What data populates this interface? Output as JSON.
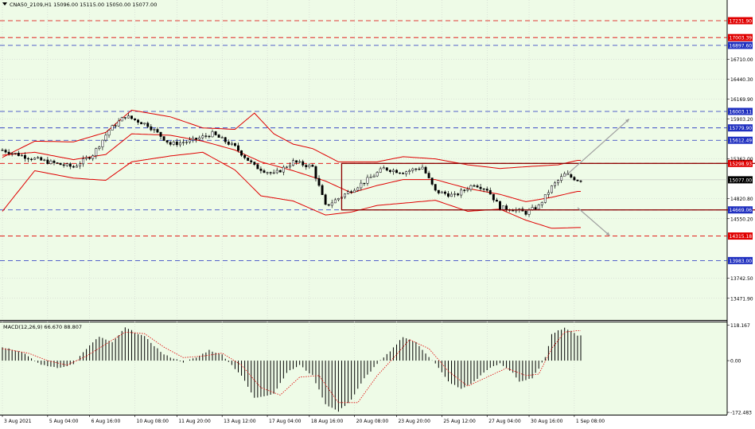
{
  "header": {
    "symbol_info": "CNA50_2109,H1  15096.00 15115.00 15050.00 15077.00"
  },
  "macd_header": "MACD(12,26,9) 66.670 88.807",
  "colors": {
    "background": "#eefbe7",
    "grid": "#c8c8c8",
    "candle": "#000000",
    "bollinger": "#e00000",
    "macd_hist": "#000000",
    "macd_signal": "#e00000",
    "red_level": "#e00000",
    "blue_level": "#2030c0",
    "box": "#8b0000",
    "arrow": "#a0a0a0"
  },
  "chart_data": [
    {
      "type": "candlestick",
      "name": "price",
      "ylim": [
        13200,
        17480
      ],
      "y_ticks": [
        "16710.00",
        "16440.30",
        "16169.90",
        "15903.20",
        "15362.00",
        "14820.80",
        "14550.20",
        "13742.50",
        "13471.90"
      ],
      "x_ticks": [
        "3 Aug 2021",
        "5 Aug 04:00",
        "6 Aug 16:00",
        "10 Aug 08:00",
        "11 Aug 20:00",
        "13 Aug 12:00",
        "17 Aug 04:00",
        "18 Aug 16:00",
        "20 Aug 08:00",
        "23 Aug 20:00",
        "25 Aug 12:00",
        "27 Aug 04:00",
        "30 Aug 16:00",
        "1 Sep 08:00"
      ],
      "price_anchors": [
        [
          0,
          15480
        ],
        [
          8,
          15380
        ],
        [
          15,
          15310
        ],
        [
          22,
          15250
        ],
        [
          28,
          15420
        ],
        [
          33,
          15750
        ],
        [
          38,
          15940
        ],
        [
          45,
          15820
        ],
        [
          52,
          15560
        ],
        [
          58,
          15600
        ],
        [
          65,
          15700
        ],
        [
          72,
          15520
        ],
        [
          78,
          15260
        ],
        [
          84,
          15150
        ],
        [
          90,
          15320
        ],
        [
          96,
          15250
        ],
        [
          100,
          14720
        ],
        [
          106,
          14880
        ],
        [
          112,
          15050
        ],
        [
          118,
          15230
        ],
        [
          124,
          15180
        ],
        [
          130,
          15250
        ],
        [
          134,
          14920
        ],
        [
          140,
          14860
        ],
        [
          146,
          15020
        ],
        [
          150,
          14950
        ],
        [
          154,
          14700
        ],
        [
          158,
          14680
        ],
        [
          162,
          14630
        ],
        [
          166,
          14720
        ],
        [
          170,
          14980
        ],
        [
          174,
          15150
        ],
        [
          178,
          15077
        ]
      ],
      "bollinger_upper": [
        [
          0,
          15380
        ],
        [
          10,
          15600
        ],
        [
          22,
          15590
        ],
        [
          32,
          15720
        ],
        [
          40,
          16020
        ],
        [
          52,
          15930
        ],
        [
          62,
          15780
        ],
        [
          72,
          15760
        ],
        [
          78,
          15980
        ],
        [
          84,
          15700
        ],
        [
          90,
          15560
        ],
        [
          96,
          15500
        ],
        [
          104,
          15320
        ],
        [
          116,
          15320
        ],
        [
          124,
          15390
        ],
        [
          134,
          15360
        ],
        [
          144,
          15280
        ],
        [
          154,
          15230
        ],
        [
          164,
          15260
        ],
        [
          172,
          15280
        ],
        [
          178,
          15340
        ]
      ],
      "bollinger_middle": [
        [
          0,
          15410
        ],
        [
          10,
          15450
        ],
        [
          22,
          15350
        ],
        [
          32,
          15420
        ],
        [
          40,
          15700
        ],
        [
          52,
          15680
        ],
        [
          62,
          15600
        ],
        [
          72,
          15480
        ],
        [
          80,
          15320
        ],
        [
          90,
          15200
        ],
        [
          100,
          15060
        ],
        [
          108,
          14900
        ],
        [
          116,
          15000
        ],
        [
          124,
          15080
        ],
        [
          134,
          15080
        ],
        [
          144,
          14960
        ],
        [
          154,
          14880
        ],
        [
          162,
          14780
        ],
        [
          170,
          14840
        ],
        [
          178,
          14920
        ]
      ],
      "bollinger_lower": [
        [
          0,
          14650
        ],
        [
          10,
          15200
        ],
        [
          22,
          15100
        ],
        [
          32,
          15070
        ],
        [
          40,
          15320
        ],
        [
          52,
          15400
        ],
        [
          62,
          15450
        ],
        [
          72,
          15210
        ],
        [
          80,
          14860
        ],
        [
          90,
          14790
        ],
        [
          100,
          14600
        ],
        [
          108,
          14640
        ],
        [
          116,
          14730
        ],
        [
          124,
          14760
        ],
        [
          134,
          14800
        ],
        [
          144,
          14650
        ],
        [
          154,
          14680
        ],
        [
          162,
          14530
        ],
        [
          170,
          14420
        ],
        [
          178,
          14430
        ]
      ],
      "levels": [
        {
          "label": "17231.90",
          "value": 17231.9,
          "color": "red"
        },
        {
          "label": "17003.39",
          "value": 17003.39,
          "color": "red"
        },
        {
          "label": "16897.60",
          "value": 16897.6,
          "color": "blue"
        },
        {
          "label": "16003.11",
          "value": 16003.11,
          "color": "blue"
        },
        {
          "label": "15779.90",
          "value": 15779.9,
          "color": "blue"
        },
        {
          "label": "15612.49",
          "value": 15612.49,
          "color": "blue"
        },
        {
          "label": "15298.93",
          "value": 15298.93,
          "color": "red"
        },
        {
          "label": "14669.06",
          "value": 14669.06,
          "color": "blue"
        },
        {
          "label": "14315.18",
          "value": 14315.18,
          "color": "red"
        },
        {
          "label": "13983.00",
          "value": 13983.0,
          "color": "blue"
        }
      ],
      "current_price": {
        "label": "15077.00",
        "value": 15077.0
      },
      "box": {
        "x_from": 105,
        "x_to": 256,
        "y_top": 15298.93,
        "y_bottom": 14669.06
      },
      "arrows": [
        {
          "from": [
            174,
            15120
          ],
          "to": [
            194,
            15900
          ]
        },
        {
          "from": [
            178,
            14700
          ],
          "to": [
            188,
            14320
          ]
        }
      ],
      "grid": true
    },
    {
      "type": "bar",
      "name": "MACD(12,26,9)",
      "ylim": [
        -175,
        125
      ],
      "y_ticks": [
        "118.167",
        "0.00",
        "-172.483"
      ],
      "hist_anchors": [
        [
          0,
          45
        ],
        [
          6,
          30
        ],
        [
          12,
          -15
        ],
        [
          18,
          -25
        ],
        [
          22,
          -10
        ],
        [
          26,
          40
        ],
        [
          30,
          80
        ],
        [
          34,
          60
        ],
        [
          38,
          110
        ],
        [
          44,
          80
        ],
        [
          50,
          20
        ],
        [
          56,
          -5
        ],
        [
          60,
          10
        ],
        [
          64,
          35
        ],
        [
          68,
          20
        ],
        [
          74,
          -50
        ],
        [
          78,
          -125
        ],
        [
          84,
          -110
        ],
        [
          88,
          -40
        ],
        [
          92,
          -15
        ],
        [
          96,
          -50
        ],
        [
          100,
          -145
        ],
        [
          104,
          -170
        ],
        [
          108,
          -130
        ],
        [
          112,
          -60
        ],
        [
          116,
          -10
        ],
        [
          120,
          30
        ],
        [
          124,
          80
        ],
        [
          128,
          60
        ],
        [
          134,
          -10
        ],
        [
          138,
          -70
        ],
        [
          142,
          -95
        ],
        [
          146,
          -70
        ],
        [
          150,
          -30
        ],
        [
          154,
          -10
        ],
        [
          158,
          -40
        ],
        [
          160,
          -70
        ],
        [
          164,
          -60
        ],
        [
          168,
          10
        ],
        [
          170,
          90
        ],
        [
          174,
          110
        ],
        [
          178,
          85
        ]
      ],
      "signal_anchors": [
        [
          0,
          40
        ],
        [
          8,
          25
        ],
        [
          14,
          0
        ],
        [
          20,
          -15
        ],
        [
          26,
          15
        ],
        [
          32,
          55
        ],
        [
          38,
          95
        ],
        [
          44,
          90
        ],
        [
          50,
          45
        ],
        [
          56,
          10
        ],
        [
          62,
          15
        ],
        [
          68,
          25
        ],
        [
          74,
          -15
        ],
        [
          80,
          -90
        ],
        [
          86,
          -115
        ],
        [
          92,
          -55
        ],
        [
          98,
          -50
        ],
        [
          104,
          -140
        ],
        [
          110,
          -140
        ],
        [
          116,
          -50
        ],
        [
          122,
          20
        ],
        [
          126,
          70
        ],
        [
          132,
          40
        ],
        [
          138,
          -35
        ],
        [
          144,
          -85
        ],
        [
          150,
          -55
        ],
        [
          156,
          -25
        ],
        [
          162,
          -50
        ],
        [
          166,
          -45
        ],
        [
          170,
          40
        ],
        [
          174,
          95
        ],
        [
          178,
          100
        ]
      ]
    }
  ]
}
